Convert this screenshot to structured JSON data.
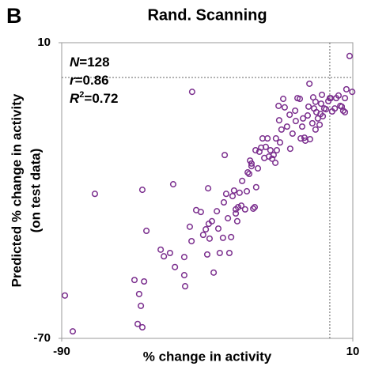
{
  "chart_data": {
    "type": "scatter",
    "panel_label": "B",
    "title": "Rand. Scanning",
    "x_label": "% change in activity",
    "y_label": [
      "Predicted % change in activity",
      "(on test data)"
    ],
    "annotations": [
      {
        "var": "N",
        "text": "=128"
      },
      {
        "var": "r",
        "text": "=0.86"
      },
      {
        "var": "R",
        "sup": "2",
        "text": "=0.72"
      }
    ],
    "xlim": [
      -90,
      10
    ],
    "ylim": [
      -70,
      10
    ],
    "xticks": [
      -90,
      10
    ],
    "yticks": [
      -70,
      10
    ],
    "ref_x": 2.1,
    "ref_y": 0.6,
    "color": "#7b2f8e",
    "x": [
      -88.9,
      -86.2,
      -78.6,
      -62.3,
      -60.9,
      -65,
      -61.7,
      -63.4,
      -62.8,
      -63.9,
      -62.3,
      -56,
      -54.9,
      -51.7,
      -52.8,
      -51.1,
      -47.9,
      -47.9,
      -46,
      -45.4,
      -47.6,
      -45.2,
      -43.8,
      -42.2,
      -41.4,
      -40,
      -39.7,
      -39.5,
      -38.4,
      -39.2,
      -37.8,
      -36.7,
      -36.2,
      -35.7,
      -34.3,
      -34,
      -33.5,
      -32.9,
      -34.6,
      -32.4,
      -31.3,
      -30.8,
      -30.2,
      -30.2,
      -29.7,
      -29.4,
      -28.9,
      -28.3,
      -28,
      -27,
      -26.4,
      -26.1,
      -25.6,
      -25.3,
      -24.8,
      -24.8,
      -24.2,
      -23.7,
      -23.4,
      -23.2,
      -22.1,
      -21.5,
      -21,
      -20.4,
      -19.9,
      -19.3,
      -18.8,
      -18.3,
      -17.7,
      -17.2,
      -16.6,
      -16.1,
      -16.4,
      -15.5,
      -15.3,
      -15,
      -14.5,
      -13.9,
      -13.4,
      -12.6,
      -11.7,
      -11.5,
      -10.7,
      -9.8,
      -9.6,
      -9,
      -8.2,
      -7.9,
      -7.4,
      -7.1,
      -6.6,
      -6.3,
      -5.5,
      -5.2,
      -4.9,
      -4.7,
      -3.9,
      -3.6,
      -3.3,
      -2.8,
      -2.8,
      -2.5,
      -2,
      -1.4,
      -1.1,
      -0.9,
      -0.6,
      -0.3,
      0.2,
      0.8,
      1.6,
      2.1,
      2.4,
      2.9,
      3.8,
      4.3,
      5.1,
      5.7,
      6.2,
      6.7,
      7.3,
      7.3,
      7.8,
      8.9,
      9.8,
      -22.6,
      -31.8,
      -40.5
    ],
    "values": [
      -58.4,
      -68.1,
      -30.9,
      -29.8,
      -40.9,
      -54.2,
      -54.6,
      -58,
      -61.2,
      -66.1,
      -67,
      -46,
      -47.8,
      -28.3,
      -46.9,
      -50.7,
      -48,
      -52.9,
      -39.8,
      -43.7,
      -55.9,
      -3.3,
      -35.3,
      -35.8,
      -42,
      -47.3,
      -29.4,
      -39,
      -38.3,
      -43,
      -52.2,
      -35.6,
      -40.3,
      -46.9,
      -33.2,
      -20.4,
      -30.9,
      -37.5,
      -42.8,
      -46.9,
      -31.5,
      -30,
      -35.1,
      -36.2,
      -38.3,
      -34.5,
      -30.6,
      -34.1,
      -27.4,
      -35.1,
      -30.2,
      -25.1,
      -25.5,
      -21.9,
      -22.7,
      -23.4,
      -34.9,
      -34.5,
      -19.1,
      -29.1,
      -19.5,
      -18.4,
      -15.9,
      -21.2,
      -18.2,
      -15.9,
      -20.8,
      -19.1,
      -21.4,
      -20.4,
      -22.5,
      -19.1,
      -15.9,
      -7.1,
      -11,
      -17,
      -13.5,
      -5.2,
      -7.5,
      -12.7,
      -9.5,
      -18.7,
      -14.6,
      -8.4,
      -11.2,
      -5,
      -5.2,
      -15.9,
      -12.7,
      -10.5,
      -15.7,
      -16.5,
      -9.7,
      -7.3,
      -1.1,
      -16.1,
      -11.8,
      -4.8,
      -7.8,
      -13.5,
      -6,
      -8.8,
      -10.5,
      -12.2,
      -9.3,
      -6.5,
      -4.1,
      -9.9,
      -7.8,
      -8,
      -5.8,
      -5,
      -5,
      -8.6,
      -7.8,
      -5,
      -4.3,
      -7.1,
      -7.3,
      -8.4,
      -5,
      -8.8,
      -2.6,
      6.4,
      -3.3,
      -24,
      -42.6,
      -40.5
    ]
  }
}
